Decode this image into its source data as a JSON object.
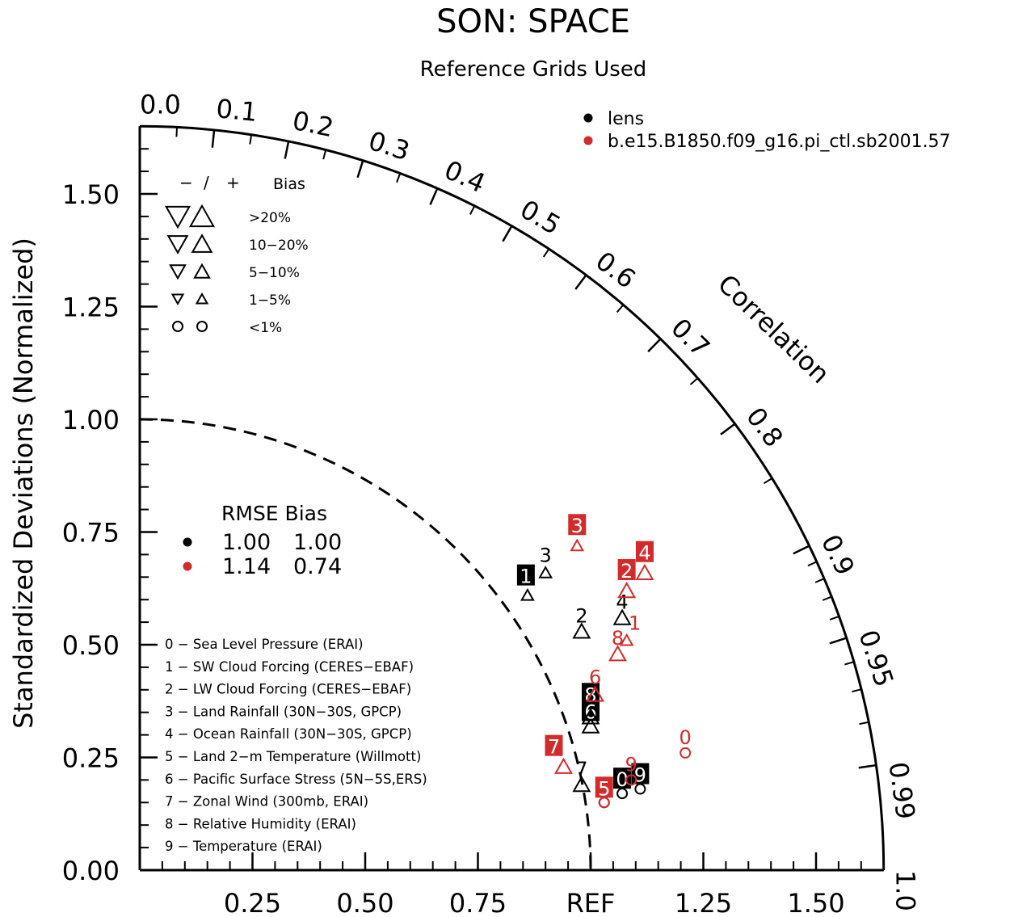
{
  "chart_data": {
    "type": "scatter",
    "title": "SON: SPACE",
    "subtitle": "Reference Grids Used",
    "ylabel": "Standardized Deviations (Normalized)",
    "correlation_label": "Correlation",
    "ylim": [
      0,
      1.65
    ],
    "xlim": [
      0,
      1.65
    ],
    "y_ticks": [
      "0.00",
      "0.25",
      "0.50",
      "0.75",
      "1.00",
      "1.25",
      "1.50"
    ],
    "x_ticks": [
      "0.25",
      "0.50",
      "0.75",
      "REF",
      "1.25",
      "1.50"
    ],
    "correlation_ticks": [
      {
        "value": 0.0,
        "label": "0.0"
      },
      {
        "value": 0.1,
        "label": "0.1"
      },
      {
        "value": 0.2,
        "label": "0.2"
      },
      {
        "value": 0.3,
        "label": "0.3"
      },
      {
        "value": 0.4,
        "label": "0.4"
      },
      {
        "value": 0.5,
        "label": "0.5"
      },
      {
        "value": 0.6,
        "label": "0.6"
      },
      {
        "value": 0.7,
        "label": "0.7"
      },
      {
        "value": 0.8,
        "label": "0.8"
      },
      {
        "value": 0.9,
        "label": "0.9"
      },
      {
        "value": 0.95,
        "label": "0.95"
      },
      {
        "value": 0.99,
        "label": "0.99"
      },
      {
        "value": 1.0,
        "label": "1.0"
      }
    ],
    "reference_arc": 1.0,
    "series": [
      {
        "name": "lens",
        "color": "#000000",
        "rmse": "1.00",
        "bias": "1.00",
        "points": [
          {
            "id": "0",
            "x": 1.07,
            "y": 0.17
          },
          {
            "id": "1",
            "x": 0.86,
            "y": 0.61
          },
          {
            "id": "2",
            "x": 0.98,
            "y": 0.53
          },
          {
            "id": "3",
            "x": 0.9,
            "y": 0.66
          },
          {
            "id": "4",
            "x": 1.07,
            "y": 0.56
          },
          {
            "id": "5",
            "x": 1.03,
            "y": 0.15
          },
          {
            "id": "6",
            "x": 1.0,
            "y": 0.32
          },
          {
            "id": "7",
            "x": 0.98,
            "y": 0.19
          },
          {
            "id": "8",
            "x": 1.0,
            "y": 0.34
          },
          {
            "id": "9",
            "x": 1.11,
            "y": 0.18
          }
        ]
      },
      {
        "name": "b.e15.B1850.f09_g16.pi_ctl.sb2001.57",
        "color": "#d22b2b",
        "rmse": "1.14",
        "bias": "0.74",
        "points": [
          {
            "id": "0",
            "x": 1.21,
            "y": 0.26
          },
          {
            "id": "1",
            "x": 1.08,
            "y": 0.51
          },
          {
            "id": "2",
            "x": 1.08,
            "y": 0.62
          },
          {
            "id": "3",
            "x": 0.97,
            "y": 0.72
          },
          {
            "id": "4",
            "x": 1.12,
            "y": 0.66
          },
          {
            "id": "5",
            "x": 1.03,
            "y": 0.15
          },
          {
            "id": "6",
            "x": 1.01,
            "y": 0.39
          },
          {
            "id": "7",
            "x": 0.94,
            "y": 0.23
          },
          {
            "id": "8",
            "x": 1.06,
            "y": 0.48
          },
          {
            "id": "9",
            "x": 1.09,
            "y": 0.2
          }
        ]
      }
    ],
    "legend_placement": "top-right",
    "bias_legend": {
      "header": {
        "neg": "−",
        "slash": "/",
        "pos": "+",
        "title": "Bias"
      },
      "rows": [
        "&gt;20%",
        "10−20%",
        "5−10%",
        "1−5%",
        "&lt;1%"
      ]
    },
    "stats_legend": {
      "header": "RMSE Bias"
    },
    "variables": [
      "0 − Sea Level Pressure (ERAI)",
      "1 − SW Cloud Forcing (CERES−EBAF)",
      "2 − LW Cloud Forcing (CERES−EBAF)",
      "3 − Land Rainfall (30N−30S, GPCP)",
      "4 − Ocean Rainfall (30N−30S, GPCP)",
      "5 − Land 2−m Temperature (Willmott)",
      "6 − Pacific Surface Stress (5N−5S,ERS)",
      "7 − Zonal Wind (300mb, ERAI)",
      "8 − Relative Humidity (ERAI)",
      "9 − Temperature (ERAI)"
    ]
  }
}
